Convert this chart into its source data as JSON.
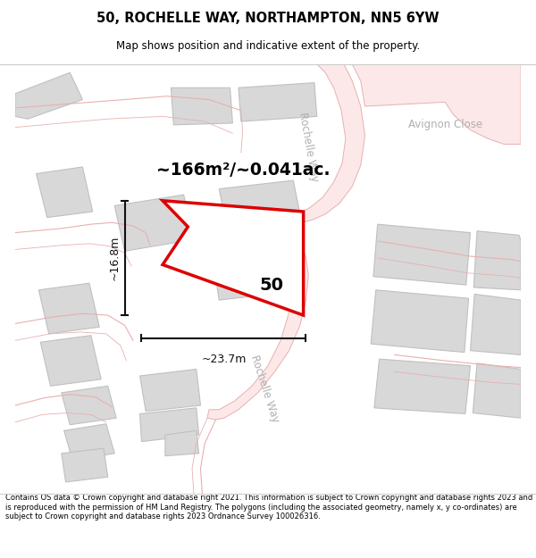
{
  "title": "50, ROCHELLE WAY, NORTHAMPTON, NN5 6YW",
  "subtitle": "Map shows position and indicative extent of the property.",
  "footer": "Contains OS data © Crown copyright and database right 2021. This information is subject to Crown copyright and database rights 2023 and is reproduced with the permission of HM Land Registry. The polygons (including the associated geometry, namely x, y co-ordinates) are subject to Crown copyright and database rights 2023 Ordnance Survey 100026316.",
  "area_label": "~166m²/~0.041ac.",
  "width_label": "~23.7m",
  "height_label": "~16.8m",
  "number_label": "50",
  "plot_color": "#dd0000",
  "building_fill": "#d8d8d8",
  "building_edge": "#c0c0c0",
  "road_fill": "#fce8e8",
  "road_edge": "#e8b0b0",
  "street_color": "#b0b0b0",
  "dim_color": "#111111"
}
